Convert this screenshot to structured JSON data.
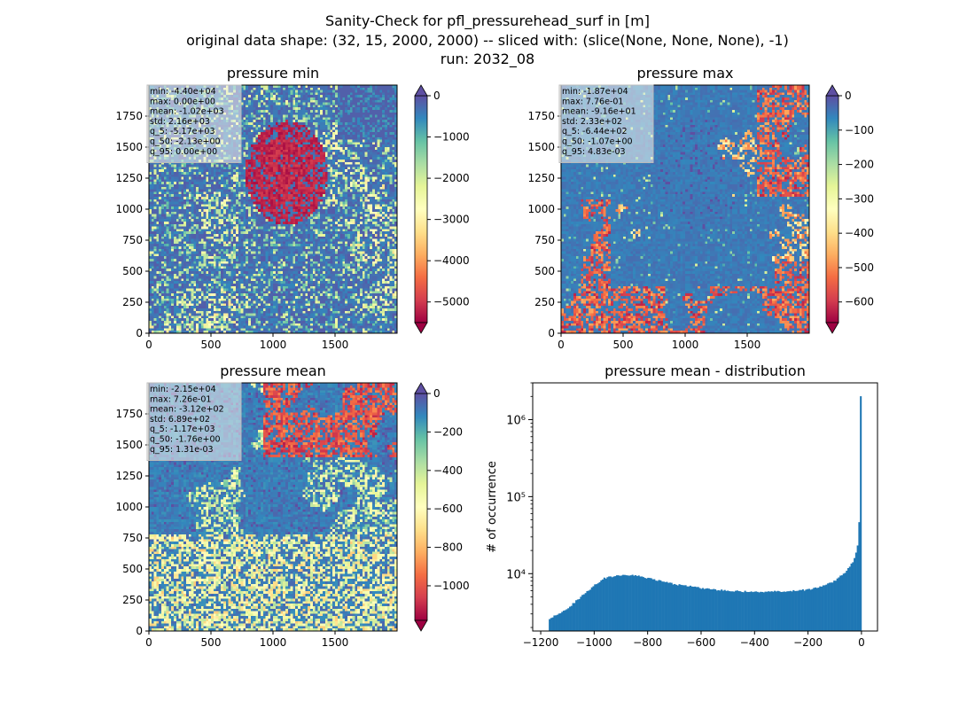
{
  "figure": {
    "title_lines": [
      "Sanity-Check for pfl_pressurehead_surf in [m]",
      "original data shape: (32, 15, 2000, 2000) -- sliced with: (slice(None, None, None), -1)",
      "run: 2032_08"
    ]
  },
  "chart_data": [
    {
      "type": "heatmap",
      "title": "pressure min",
      "xlim": [
        0,
        2000
      ],
      "ylim": [
        0,
        2000
      ],
      "xticks": [
        "0",
        "500",
        "1000",
        "1500"
      ],
      "yticks": [
        "0",
        "250",
        "500",
        "750",
        "1000",
        "1250",
        "1500",
        "1750"
      ],
      "colormap": "Spectral",
      "colorbar": {
        "range": [
          -5500,
          0
        ],
        "extend": "both",
        "ticks": [
          "0",
          "−1000",
          "−2000",
          "−3000",
          "−4000",
          "−5000"
        ]
      },
      "stats": [
        "min: -4.40e+04",
        "max: 0.00e+00",
        "mean: -1.02e+03",
        "std: 2.16e+03",
        "q_5: -5.17e+03",
        "q_50: -2.13e+00",
        "q_95: 0.00e+00"
      ]
    },
    {
      "type": "heatmap",
      "title": "pressure max",
      "xlim": [
        0,
        2000
      ],
      "ylim": [
        0,
        2000
      ],
      "xticks": [
        "0",
        "500",
        "1000",
        "1500"
      ],
      "yticks": [
        "0",
        "250",
        "500",
        "750",
        "1000",
        "1250",
        "1500",
        "1750"
      ],
      "colormap": "Spectral",
      "colorbar": {
        "range": [
          -660,
          0
        ],
        "extend": "both",
        "ticks": [
          "0",
          "−100",
          "−200",
          "−300",
          "−400",
          "−500",
          "−600"
        ]
      },
      "stats": [
        "min: -1.87e+04",
        "max: 7.76e-01",
        "mean: -9.16e+01",
        "std: 2.33e+02",
        "q_5: -6.44e+02",
        "q_50: -1.07e+00",
        "q_95: 4.83e-03"
      ]
    },
    {
      "type": "heatmap",
      "title": "pressure mean",
      "xlim": [
        0,
        2000
      ],
      "ylim": [
        0,
        2000
      ],
      "xticks": [
        "0",
        "500",
        "1000",
        "1500"
      ],
      "yticks": [
        "0",
        "250",
        "500",
        "750",
        "1000",
        "1250",
        "1500",
        "1750"
      ],
      "colormap": "Spectral",
      "colorbar": {
        "range": [
          -1180,
          0
        ],
        "extend": "both",
        "ticks": [
          "0",
          "−200",
          "−400",
          "−600",
          "−800",
          "−1000"
        ]
      },
      "stats": [
        "min: -2.15e+04",
        "max: 7.26e-01",
        "mean: -3.12e+02",
        "std: 6.89e+02",
        "q_5: -1.17e+03",
        "q_50: -1.76e+00",
        "q_95: 1.31e-03"
      ]
    },
    {
      "type": "bar",
      "title": "pressure mean - distribution",
      "ylabel": "# of occurrence",
      "yscale": "log",
      "xlim": [
        -1230,
        60
      ],
      "ylim": [
        1800,
        3000000
      ],
      "xticks": [
        -1200,
        -1000,
        -800,
        -600,
        -400,
        -200,
        0
      ],
      "xtick_labels": [
        "−1200",
        "−1000",
        "−800",
        "−600",
        "−400",
        "−200",
        "0"
      ],
      "yticks": [
        10000,
        100000,
        1000000
      ],
      "ytick_labels": [
        "10⁴",
        "10⁵",
        "10⁶"
      ],
      "color": "#1f77b4",
      "bin_range": [
        -1170,
        0
      ],
      "points": [
        [
          -1170,
          2600
        ],
        [
          -1100,
          3500
        ],
        [
          -1050,
          5000
        ],
        [
          -1000,
          7000
        ],
        [
          -960,
          8800
        ],
        [
          -900,
          9500
        ],
        [
          -860,
          9600
        ],
        [
          -800,
          8800
        ],
        [
          -750,
          8000
        ],
        [
          -700,
          7300
        ],
        [
          -650,
          6900
        ],
        [
          -600,
          6500
        ],
        [
          -550,
          6200
        ],
        [
          -500,
          6000
        ],
        [
          -450,
          5900
        ],
        [
          -400,
          5800
        ],
        [
          -350,
          5800
        ],
        [
          -300,
          5900
        ],
        [
          -250,
          6000
        ],
        [
          -200,
          6200
        ],
        [
          -150,
          6800
        ],
        [
          -100,
          8000
        ],
        [
          -60,
          10500
        ],
        [
          -30,
          14500
        ],
        [
          -15,
          22000
        ],
        [
          -8,
          50000
        ],
        [
          -3,
          2000000
        ]
      ]
    }
  ]
}
